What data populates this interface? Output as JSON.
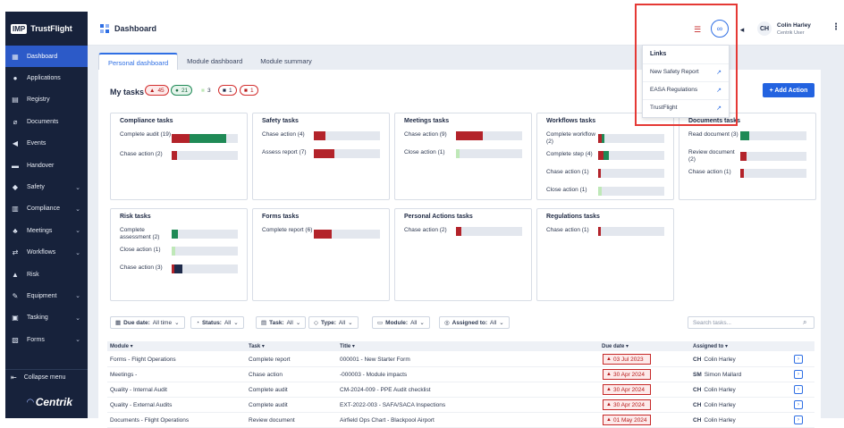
{
  "brand": {
    "badge": "IMP",
    "name": "TrustFlight"
  },
  "sidebar": {
    "items": [
      {
        "label": "Dashboard",
        "icon": "dashboard-icon",
        "glyph": "▦",
        "chev": ""
      },
      {
        "label": "Applications",
        "icon": "person-icon",
        "glyph": "●",
        "chev": ""
      },
      {
        "label": "Registry",
        "icon": "registry-icon",
        "glyph": "▤",
        "chev": ""
      },
      {
        "label": "Documents",
        "icon": "attachment-icon",
        "glyph": "⌀",
        "chev": ""
      },
      {
        "label": "Events",
        "icon": "bullhorn-icon",
        "glyph": "◀",
        "chev": ""
      },
      {
        "label": "Handover",
        "icon": "handover-icon",
        "glyph": "▬",
        "chev": ""
      },
      {
        "label": "Safety",
        "icon": "shield-icon",
        "glyph": "◆",
        "chev": "⌄"
      },
      {
        "label": "Compliance",
        "icon": "compliance-icon",
        "glyph": "▥",
        "chev": "⌄"
      },
      {
        "label": "Meetings",
        "icon": "meetings-icon",
        "glyph": "♣",
        "chev": "⌄"
      },
      {
        "label": "Workflows",
        "icon": "workflow-icon",
        "glyph": "⇄",
        "chev": "⌄"
      },
      {
        "label": "Risk",
        "icon": "risk-icon",
        "glyph": "▲",
        "chev": ""
      },
      {
        "label": "Equipment",
        "icon": "wrench-icon",
        "glyph": "✎",
        "chev": "⌄"
      },
      {
        "label": "Tasking",
        "icon": "tasking-icon",
        "glyph": "▣",
        "chev": "⌄"
      },
      {
        "label": "Forms",
        "icon": "forms-icon",
        "glyph": "▧",
        "chev": "⌄"
      }
    ],
    "collapse_label": "Collapse menu",
    "footer_logo": "Centrik"
  },
  "header": {
    "title": "Dashboard",
    "user_initials": "CH",
    "user_name": "Colin Harley",
    "user_role": "Centrik User"
  },
  "tabs": [
    {
      "label": "Personal dashboard"
    },
    {
      "label": "Module dashboard"
    },
    {
      "label": "Module summary"
    }
  ],
  "mytasks": {
    "label": "My tasks",
    "pills": [
      {
        "glyph": "▲",
        "count": "45"
      },
      {
        "glyph": "●",
        "count": "21"
      },
      {
        "glyph": "■",
        "count": "3"
      },
      {
        "glyph": "■",
        "count": "1"
      },
      {
        "glyph": "■",
        "count": "1"
      }
    ],
    "add_label": "+ Add Action"
  },
  "colors": {
    "red": "#b3232a",
    "green": "#1f8a56",
    "light_green": "#bfe8b8",
    "navy": "#1e2a4a",
    "accent": "#2f6fe4"
  },
  "cards": [
    {
      "title": "Compliance tasks",
      "rows": [
        {
          "label": "Complete audit (19)",
          "red": 0.27,
          "green": 0.55,
          "light": 0,
          "navy": 0
        },
        {
          "label": "Chase action (2)",
          "red": 0.08,
          "green": 0,
          "light": 0,
          "navy": 0
        }
      ]
    },
    {
      "title": "Safety tasks",
      "rows": [
        {
          "label": "Chase action (4)",
          "red": 0.18,
          "green": 0,
          "light": 0,
          "navy": 0
        },
        {
          "label": "Assess report (7)",
          "red": 0.31,
          "green": 0,
          "light": 0,
          "navy": 0
        }
      ]
    },
    {
      "title": "Meetings tasks",
      "rows": [
        {
          "label": "Chase action (9)",
          "red": 0.4,
          "green": 0,
          "light": 0,
          "navy": 0
        },
        {
          "label": "Close action (1)",
          "red": 0,
          "green": 0,
          "light": 0.06,
          "navy": 0
        }
      ]
    },
    {
      "title": "Workflows tasks",
      "rows": [
        {
          "label": "Complete workflow (2)",
          "red": 0.06,
          "green": 0.04,
          "light": 0,
          "navy": 0
        },
        {
          "label": "Complete step (4)",
          "red": 0.08,
          "green": 0.08,
          "light": 0,
          "navy": 0
        },
        {
          "label": "Chase action (1)",
          "red": 0.04,
          "green": 0,
          "light": 0,
          "navy": 0
        },
        {
          "label": "Close action (1)",
          "red": 0,
          "green": 0,
          "light": 0.06,
          "navy": 0
        }
      ]
    },
    {
      "title": "Documents tasks",
      "rows": [
        {
          "label": "Read document (3)",
          "red": 0,
          "green": 0.14,
          "light": 0,
          "navy": 0
        },
        {
          "label": "Review document (2)",
          "red": 0.09,
          "green": 0,
          "light": 0,
          "navy": 0
        },
        {
          "label": "Chase action (1)",
          "red": 0.05,
          "green": 0,
          "light": 0,
          "navy": 0
        }
      ]
    },
    {
      "title": "Risk tasks",
      "rows": [
        {
          "label": "Complete assessment (2)",
          "red": 0,
          "green": 0.1,
          "light": 0,
          "navy": 0
        },
        {
          "label": "Close action (1)",
          "red": 0,
          "green": 0,
          "light": 0.05,
          "navy": 0
        },
        {
          "label": "Chase action (3)",
          "red": 0.04,
          "green": 0,
          "light": 0,
          "navy": 0.12
        }
      ]
    },
    {
      "title": "Forms tasks",
      "rows": [
        {
          "label": "Complete report (6)",
          "red": 0.27,
          "green": 0,
          "light": 0,
          "navy": 0
        }
      ]
    },
    {
      "title": "Personal Actions tasks",
      "rows": [
        {
          "label": "Chase action (2)",
          "red": 0.08,
          "green": 0,
          "light": 0,
          "navy": 0
        }
      ]
    },
    {
      "title": "Regulations tasks",
      "rows": [
        {
          "label": "Chase action (1)",
          "red": 0.04,
          "green": 0,
          "light": 0,
          "navy": 0
        }
      ]
    }
  ],
  "filters": [
    {
      "label": "Due date:",
      "value": "All time",
      "icon": "calendar-icon",
      "glyph": "▦"
    },
    {
      "label": "Status:",
      "value": "All",
      "icon": "status-icon",
      "glyph": "◔"
    },
    {
      "label": "Task:",
      "value": "All",
      "icon": "task-icon",
      "glyph": "▤"
    },
    {
      "label": "Type:",
      "value": "All",
      "icon": "tag-icon",
      "glyph": "◇"
    },
    {
      "label": "Module:",
      "value": "All",
      "icon": "module-icon",
      "glyph": "▭"
    },
    {
      "label": "Assigned to:",
      "value": "All",
      "icon": "user-icon",
      "glyph": "◎"
    }
  ],
  "search": {
    "placeholder": "Search tasks..."
  },
  "table": {
    "headers": {
      "module": "Module ▾",
      "task": "Task ▾",
      "title": "Title ▾",
      "due": "Due date ▾",
      "assigned": "Assigned to ▾"
    },
    "rows": [
      {
        "module": "Forms - Flight Operations",
        "task": "Complete report",
        "title": "000001 - New Starter Form",
        "due": "03 Jul 2023",
        "initials": "CH",
        "name": "Colin Harley"
      },
      {
        "module": "Meetings -",
        "task": "Chase action",
        "title": "-000003 - Module impacts",
        "due": "30 Apr 2024",
        "initials": "SM",
        "name": "Simon Mallard"
      },
      {
        "module": "Quality - Internal Audit",
        "task": "Complete audit",
        "title": "CM-2024-009 - PPE Audit checklist",
        "due": "30 Apr 2024",
        "initials": "CH",
        "name": "Colin Harley"
      },
      {
        "module": "Quality - External Audits",
        "task": "Complete audit",
        "title": "EXT-2022-003 - SAFA/SACA Inspections",
        "due": "30 Apr 2024",
        "initials": "CH",
        "name": "Colin Harley"
      },
      {
        "module": "Documents - Flight Operations",
        "task": "Review document",
        "title": "Airfield Ops Chart - Blackpool Airport",
        "due": "01 May 2024",
        "initials": "CH",
        "name": "Colin Harley"
      }
    ]
  },
  "links_menu": {
    "title": "Links",
    "items": [
      {
        "label": "New Safety Report"
      },
      {
        "label": "EASA Regulations"
      },
      {
        "label": "TrustFlight"
      }
    ]
  }
}
